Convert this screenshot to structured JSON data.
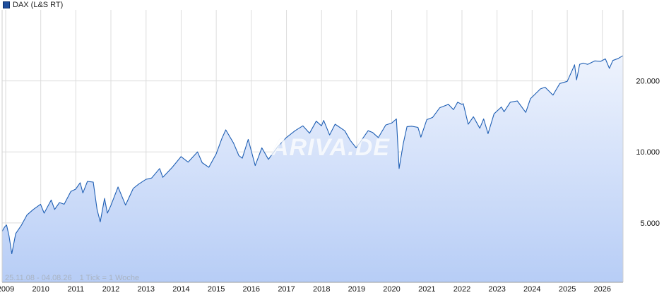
{
  "legend": {
    "label": "DAX (L&S RT)",
    "color": "#1f4e9c"
  },
  "watermark": "ARIVA.DE",
  "footer": {
    "range": "25.11.08 - 04.08.26",
    "tick": "1 Tick = 1 Woche"
  },
  "chart_data": {
    "type": "area",
    "title": "",
    "xlabel": "",
    "ylabel": "",
    "y_scale": "log",
    "yticks": [
      5000,
      10000,
      20000
    ],
    "ytick_labels": [
      "5.000",
      "10.000",
      "20.000"
    ],
    "xticks": [
      "2009",
      "2010",
      "2011",
      "2012",
      "2013",
      "2014",
      "2015",
      "2016",
      "2017",
      "2018",
      "2019",
      "2020",
      "2021",
      "2022",
      "2023",
      "2024",
      "2025",
      "2026"
    ],
    "xlim": [
      "2008-11-25",
      "2026-08-04"
    ],
    "ylim": [
      2800,
      40000
    ],
    "grid": true,
    "legend_position": "top-left",
    "line_color": "#1f5fb4",
    "fill_top_color": "#eef3fd",
    "fill_bottom_color": "#b7cdf6",
    "series": [
      {
        "name": "DAX (L&S RT)",
        "points": [
          [
            "2008-11-25",
            4600
          ],
          [
            "2008-12-20",
            4800
          ],
          [
            "2009-01-10",
            4900
          ],
          [
            "2009-02-05",
            4400
          ],
          [
            "2009-03-06",
            3700
          ],
          [
            "2009-04-15",
            4500
          ],
          [
            "2009-06-15",
            4900
          ],
          [
            "2009-08-10",
            5400
          ],
          [
            "2009-10-15",
            5700
          ],
          [
            "2009-12-30",
            6000
          ],
          [
            "2010-02-05",
            5500
          ],
          [
            "2010-04-20",
            6250
          ],
          [
            "2010-05-25",
            5700
          ],
          [
            "2010-07-15",
            6100
          ],
          [
            "2010-09-01",
            6000
          ],
          [
            "2010-11-10",
            6800
          ],
          [
            "2010-12-30",
            6950
          ],
          [
            "2011-02-15",
            7400
          ],
          [
            "2011-03-15",
            6700
          ],
          [
            "2011-05-02",
            7500
          ],
          [
            "2011-07-01",
            7450
          ],
          [
            "2011-08-10",
            5700
          ],
          [
            "2011-09-12",
            5050
          ],
          [
            "2011-10-27",
            6350
          ],
          [
            "2011-11-25",
            5500
          ],
          [
            "2011-12-30",
            5900
          ],
          [
            "2012-03-15",
            7100
          ],
          [
            "2012-06-01",
            5950
          ],
          [
            "2012-08-20",
            7000
          ],
          [
            "2012-10-15",
            7300
          ],
          [
            "2012-12-31",
            7650
          ],
          [
            "2013-02-28",
            7750
          ],
          [
            "2013-05-22",
            8500
          ],
          [
            "2013-06-24",
            7800
          ],
          [
            "2013-09-30",
            8600
          ],
          [
            "2013-12-31",
            9550
          ],
          [
            "2014-03-14",
            9050
          ],
          [
            "2014-06-20",
            10000
          ],
          [
            "2014-08-08",
            9000
          ],
          [
            "2014-10-16",
            8600
          ],
          [
            "2014-12-31",
            9800
          ],
          [
            "2015-03-01",
            11400
          ],
          [
            "2015-04-10",
            12400
          ],
          [
            "2015-06-30",
            10900
          ],
          [
            "2015-08-24",
            9650
          ],
          [
            "2015-09-29",
            9400
          ],
          [
            "2015-11-30",
            11300
          ],
          [
            "2016-02-11",
            8750
          ],
          [
            "2016-04-20",
            10400
          ],
          [
            "2016-06-27",
            9300
          ],
          [
            "2016-09-30",
            10500
          ],
          [
            "2016-12-31",
            11500
          ],
          [
            "2017-03-31",
            12300
          ],
          [
            "2017-06-20",
            12900
          ],
          [
            "2017-08-29",
            12000
          ],
          [
            "2017-11-07",
            13500
          ],
          [
            "2017-12-31",
            12900
          ],
          [
            "2018-01-23",
            13600
          ],
          [
            "2018-03-26",
            11800
          ],
          [
            "2018-05-22",
            13100
          ],
          [
            "2018-08-30",
            12300
          ],
          [
            "2018-10-26",
            11200
          ],
          [
            "2018-12-27",
            10400
          ],
          [
            "2019-04-30",
            12300
          ],
          [
            "2019-06-15",
            12100
          ],
          [
            "2019-08-15",
            11500
          ],
          [
            "2019-10-31",
            13000
          ],
          [
            "2019-12-31",
            13250
          ],
          [
            "2020-02-19",
            13800
          ],
          [
            "2020-03-18",
            8500
          ],
          [
            "2020-04-30",
            10850
          ],
          [
            "2020-06-08",
            12800
          ],
          [
            "2020-07-25",
            12850
          ],
          [
            "2020-09-30",
            12700
          ],
          [
            "2020-10-30",
            11550
          ],
          [
            "2020-12-31",
            13700
          ],
          [
            "2021-03-01",
            14000
          ],
          [
            "2021-05-15",
            15400
          ],
          [
            "2021-08-13",
            15900
          ],
          [
            "2021-10-05",
            15100
          ],
          [
            "2021-11-17",
            16250
          ],
          [
            "2021-12-31",
            15900
          ],
          [
            "2022-01-15",
            16000
          ],
          [
            "2022-03-07",
            13100
          ],
          [
            "2022-04-30",
            14100
          ],
          [
            "2022-07-05",
            12600
          ],
          [
            "2022-08-15",
            13800
          ],
          [
            "2022-09-29",
            11950
          ],
          [
            "2022-12-01",
            14500
          ],
          [
            "2023-02-15",
            15500
          ],
          [
            "2023-03-15",
            14800
          ],
          [
            "2023-05-19",
            16250
          ],
          [
            "2023-07-31",
            16450
          ],
          [
            "2023-10-27",
            14700
          ],
          [
            "2023-12-14",
            16800
          ],
          [
            "2024-03-28",
            18500
          ],
          [
            "2024-05-15",
            18800
          ],
          [
            "2024-08-05",
            17400
          ],
          [
            "2024-10-15",
            19500
          ],
          [
            "2024-12-31",
            19900
          ],
          [
            "2025-02-28",
            22500
          ],
          [
            "2025-03-18",
            23400
          ],
          [
            "2025-04-07",
            20200
          ],
          [
            "2025-05-10",
            23500
          ],
          [
            "2025-06-15",
            23800
          ],
          [
            "2025-08-01",
            23500
          ],
          [
            "2025-10-15",
            24300
          ],
          [
            "2025-12-15",
            24200
          ],
          [
            "2026-02-01",
            24800
          ],
          [
            "2026-03-15",
            22600
          ],
          [
            "2026-04-20",
            24400
          ],
          [
            "2026-06-15",
            24900
          ],
          [
            "2026-08-04",
            25600
          ]
        ]
      }
    ]
  }
}
